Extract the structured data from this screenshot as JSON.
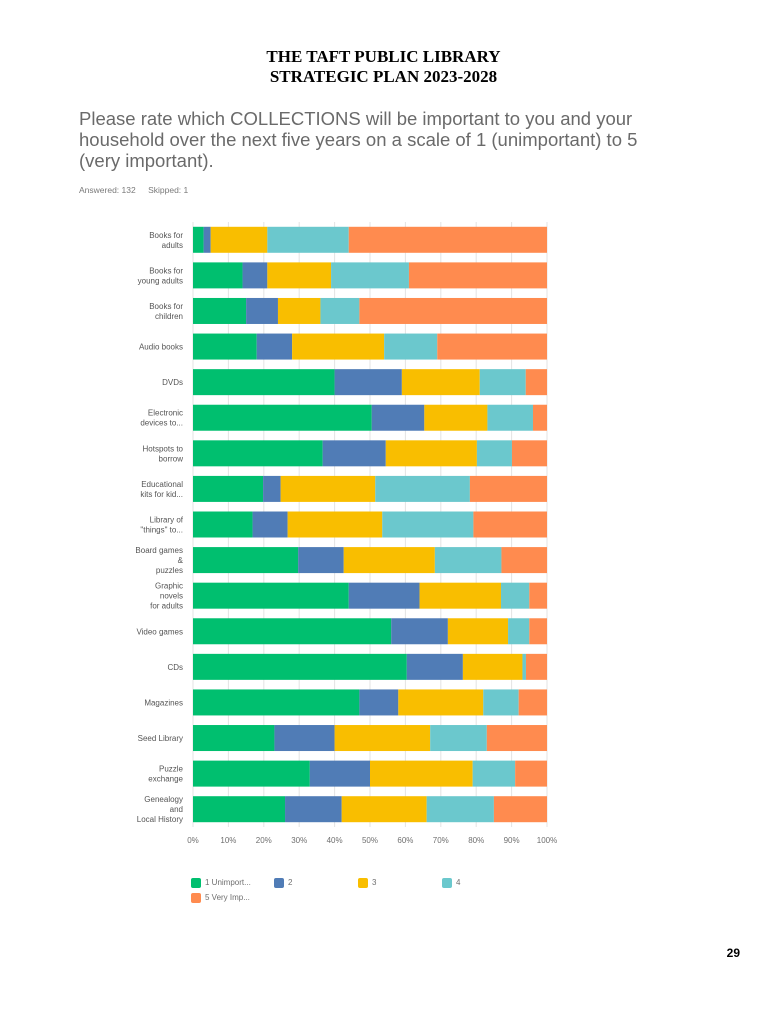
{
  "header": {
    "title_line1": "THE TAFT PUBLIC LIBRARY",
    "title_line2": "STRATEGIC PLAN 2023-2028"
  },
  "survey": {
    "question": "Please rate which COLLECTIONS will be important to you and your household over the next five years on a scale of 1 (unimportant) to 5 (very important).",
    "answered": "Answered: 132",
    "skipped": "Skipped: 1"
  },
  "page_number": "29",
  "chart_data": {
    "type": "bar",
    "orientation": "horizontal",
    "stacked": true,
    "categories": [
      [
        "Books for",
        "adults"
      ],
      [
        "Books for",
        "young adults"
      ],
      [
        "Books for",
        "children"
      ],
      [
        "Audio books"
      ],
      [
        "DVDs"
      ],
      [
        "Electronic",
        "devices to..."
      ],
      [
        "Hotspots to",
        "borrow"
      ],
      [
        "Educational",
        "kits for kid..."
      ],
      [
        "Library of",
        "\"things\" to..."
      ],
      [
        "Board games",
        "&",
        "puzzles"
      ],
      [
        "Graphic",
        "novels",
        "for adults"
      ],
      [
        "Video games"
      ],
      [
        "CDs"
      ],
      [
        "Magazines"
      ],
      [
        "Seed Library"
      ],
      [
        "Puzzle",
        "exchange"
      ],
      [
        "Genealogy",
        "and",
        "Local History"
      ]
    ],
    "series": [
      {
        "name": "1 Unimport...",
        "color": "#00bf6f",
        "values": [
          3,
          14,
          15,
          18,
          40,
          51,
          37,
          20,
          17,
          30,
          44,
          56,
          61,
          47,
          23,
          33,
          26
        ]
      },
      {
        "name": "2",
        "color": "#507cb6",
        "values": [
          2,
          7,
          9,
          10,
          19,
          15,
          18,
          5,
          10,
          13,
          20,
          16,
          16,
          11,
          17,
          17,
          16
        ]
      },
      {
        "name": "3",
        "color": "#f9be00",
        "values": [
          16,
          18,
          12,
          26,
          22,
          18,
          26,
          27,
          27,
          26,
          23,
          17,
          17,
          24,
          27,
          29,
          24
        ]
      },
      {
        "name": "4",
        "color": "#6bc8cd",
        "values": [
          23,
          22,
          11,
          15,
          13,
          13,
          10,
          27,
          26,
          19,
          8,
          6,
          1,
          10,
          16,
          12,
          19
        ]
      },
      {
        "name": "5 Very Imp...",
        "color": "#ff8b4f",
        "values": [
          56,
          39,
          53,
          31,
          6,
          4,
          10,
          22,
          21,
          13,
          5,
          5,
          6,
          8,
          17,
          9,
          15
        ]
      }
    ],
    "xlim": [
      0,
      100
    ],
    "xticks": [
      "0%",
      "10%",
      "20%",
      "30%",
      "40%",
      "50%",
      "60%",
      "70%",
      "80%",
      "90%",
      "100%"
    ],
    "grid": true,
    "legend_position": "bottom"
  }
}
